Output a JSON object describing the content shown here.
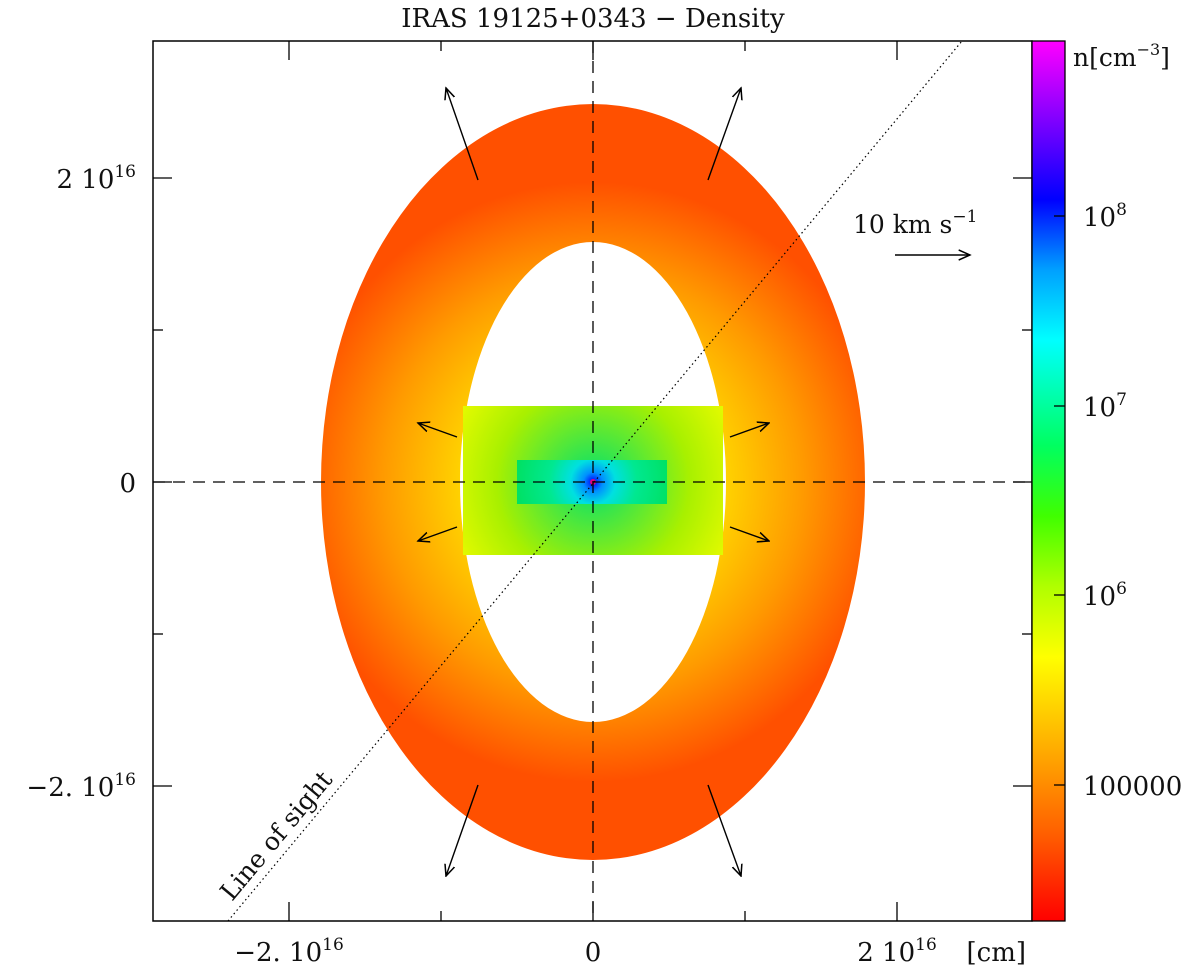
{
  "title": "IRAS 19125+0343 − Density",
  "x_axis": {
    "unit_label": "[cm]",
    "ticks": [
      {
        "value": -2e+16,
        "label": "−2. 10",
        "exp": "16"
      },
      {
        "value": 0,
        "label": "0",
        "exp": ""
      },
      {
        "value": 2e+16,
        "label": "2 10",
        "exp": "16"
      }
    ]
  },
  "y_axis": {
    "ticks": [
      {
        "value": 2e+16,
        "label": "2 10",
        "exp": "16"
      },
      {
        "value": 0,
        "label": "0",
        "exp": ""
      },
      {
        "value": -2e+16,
        "label": "−2. 10",
        "exp": "16"
      }
    ]
  },
  "colorbar": {
    "unit_label": "n[cm",
    "unit_exp": "−3",
    "unit_close": "]",
    "scale": "log",
    "ticks": [
      {
        "value": 100000000,
        "label": "10",
        "exp": "8"
      },
      {
        "value": 10000000,
        "label": "10",
        "exp": "7"
      },
      {
        "value": 1000000,
        "label": "10",
        "exp": "6"
      },
      {
        "value": 100000,
        "label": "100000",
        "exp": ""
      }
    ]
  },
  "annotations": {
    "velocity_scale": "10 km s",
    "velocity_exp": "−1",
    "line_of_sight": "Line of sight"
  },
  "colors": {
    "outer_shell": "#ff5a00",
    "disk": "#ffff00",
    "core": "#00e676",
    "center": "#0000ff",
    "axes": "#000000"
  }
}
